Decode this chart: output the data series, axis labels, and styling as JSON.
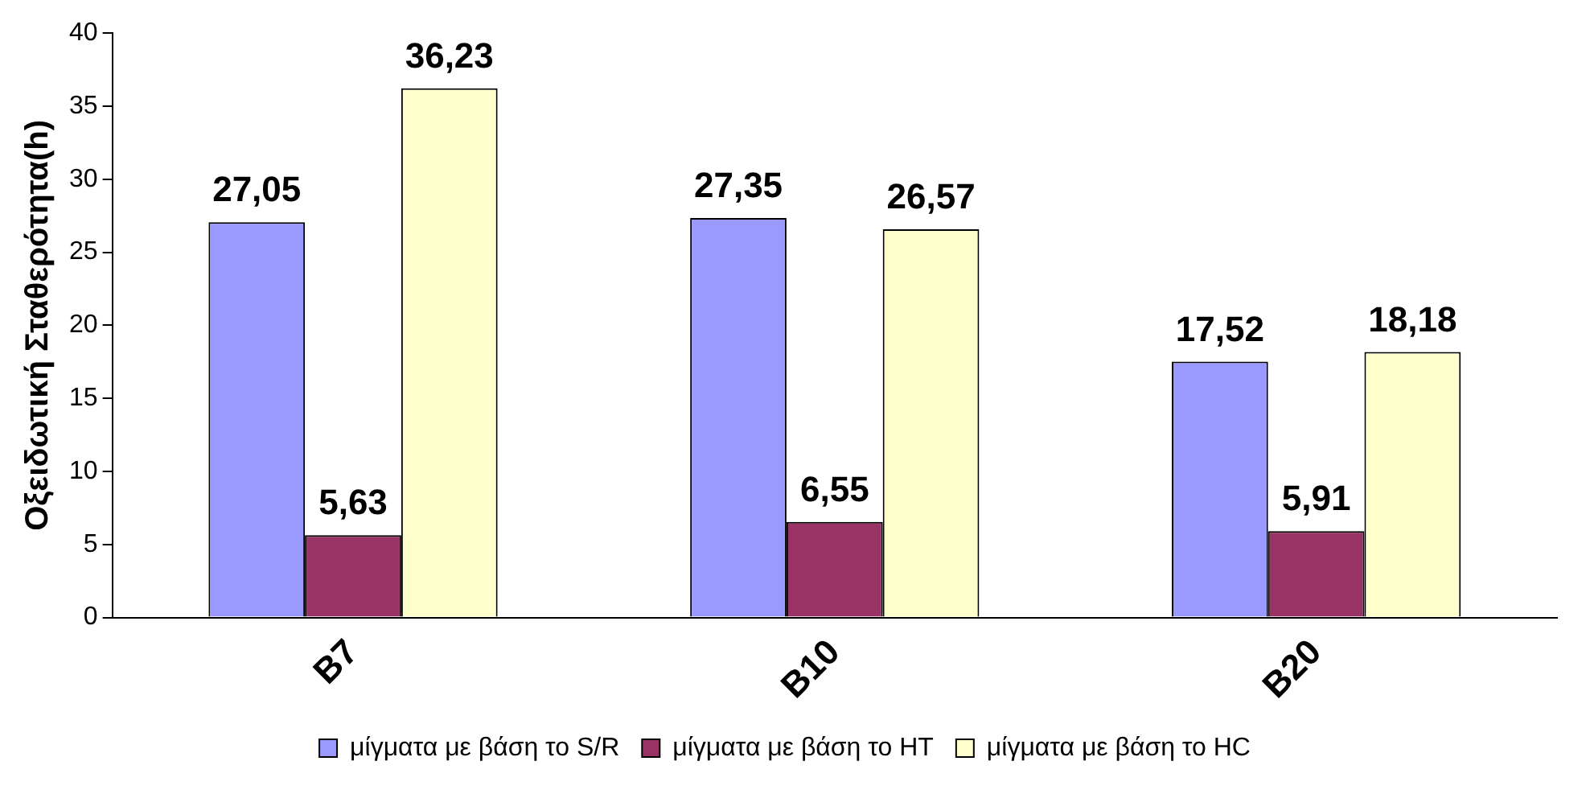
{
  "chart_data": {
    "type": "bar",
    "ylabel": "Οξειδωτική Σταθερότητα(h)",
    "categories": [
      "B7",
      "B10",
      "B20"
    ],
    "series": [
      {
        "name": "μίγματα με βάση το S/R",
        "color": "#9999ff",
        "values": [
          27.05,
          27.35,
          17.52
        ],
        "value_labels": [
          "27,05",
          "27,35",
          "17,52"
        ]
      },
      {
        "name": "μίγματα με βάση το HT",
        "color": "#993366",
        "values": [
          5.63,
          6.55,
          5.91
        ],
        "value_labels": [
          "5,63",
          "6,55",
          "5,91"
        ]
      },
      {
        "name": "μίγματα με βάση το HC",
        "color": "#ffffcc",
        "values": [
          36.23,
          26.57,
          18.18
        ],
        "value_labels": [
          "36,23",
          "26,57",
          "18,18"
        ]
      }
    ],
    "ylim": [
      0,
      40
    ],
    "yticks": [
      0,
      5,
      10,
      15,
      20,
      25,
      30,
      35,
      40
    ],
    "grid": false,
    "legend": "bottom"
  }
}
